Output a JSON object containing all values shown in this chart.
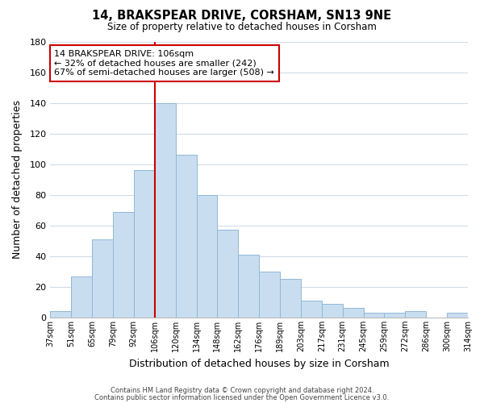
{
  "title": "14, BRAKSPEAR DRIVE, CORSHAM, SN13 9NE",
  "subtitle": "Size of property relative to detached houses in Corsham",
  "xlabel": "Distribution of detached houses by size in Corsham",
  "ylabel": "Number of detached properties",
  "bar_color": "#c9ddf0",
  "bar_edge_color": "#8fb8d8",
  "background_color": "#ffffff",
  "grid_color": "#d0dce8",
  "categories": [
    "37sqm",
    "51sqm",
    "65sqm",
    "79sqm",
    "92sqm",
    "106sqm",
    "120sqm",
    "134sqm",
    "148sqm",
    "162sqm",
    "176sqm",
    "189sqm",
    "203sqm",
    "217sqm",
    "231sqm",
    "245sqm",
    "259sqm",
    "272sqm",
    "286sqm",
    "300sqm",
    "314sqm"
  ],
  "values": [
    4,
    27,
    51,
    69,
    96,
    140,
    106,
    80,
    57,
    41,
    30,
    25,
    11,
    9,
    6,
    3,
    3,
    4,
    0,
    3,
    0
  ],
  "ylim": [
    0,
    180
  ],
  "yticks": [
    0,
    20,
    40,
    60,
    80,
    100,
    120,
    140,
    160,
    180
  ],
  "property_line_idx": 5,
  "annotation_title": "14 BRAKSPEAR DRIVE: 106sqm",
  "annotation_line1": "← 32% of detached houses are smaller (242)",
  "annotation_line2": "67% of semi-detached houses are larger (508) →",
  "annotation_box_color": "#ffffff",
  "annotation_box_edge": "#cc0000",
  "red_line_color": "#cc0000",
  "footer1": "Contains HM Land Registry data © Crown copyright and database right 2024.",
  "footer2": "Contains public sector information licensed under the Open Government Licence v3.0."
}
